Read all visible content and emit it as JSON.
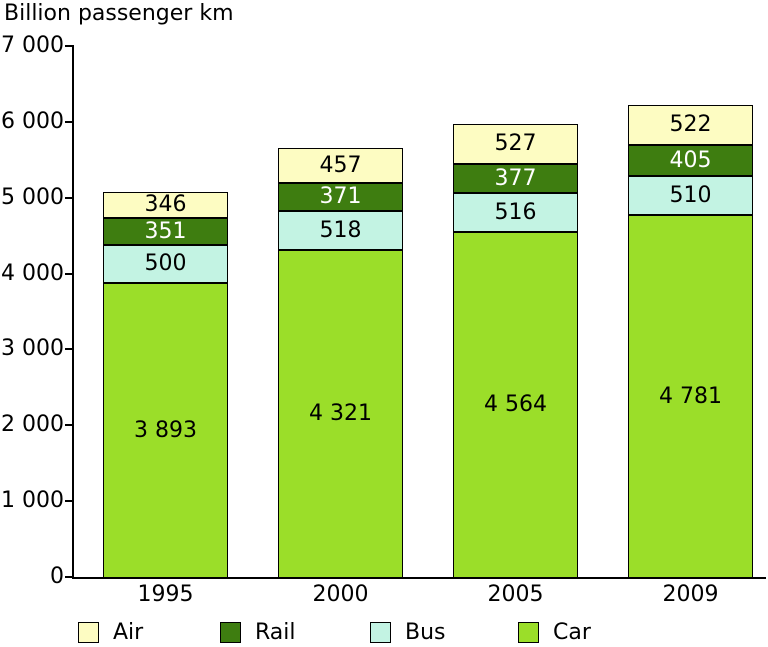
{
  "chart_data": {
    "type": "bar",
    "stacked": true,
    "title": "Billion passenger km",
    "ylabel": "Billion passenger km",
    "ylim": [
      0,
      7000
    ],
    "ytick_interval": 1000,
    "ytick_labels": [
      "0",
      "1 000",
      "2 000",
      "3 000",
      "4 000",
      "5 000",
      "6 000",
      "7 000"
    ],
    "categories": [
      "1995",
      "2000",
      "2005",
      "2009"
    ],
    "series": [
      {
        "name": "Car",
        "color": "#9BDE29",
        "label_color": "#000000",
        "values": [
          3893,
          4321,
          4564,
          4781
        ],
        "labels": [
          "3 893",
          "4 321",
          "4 564",
          "4 781"
        ]
      },
      {
        "name": "Bus",
        "color": "#C3F3E3",
        "label_color": "#000000",
        "values": [
          500,
          518,
          516,
          510
        ],
        "labels": [
          "500",
          "518",
          "516",
          "510"
        ]
      },
      {
        "name": "Rail",
        "color": "#3E7D10",
        "label_color": "#FFFFFF",
        "values": [
          351,
          371,
          377,
          405
        ],
        "labels": [
          "351",
          "371",
          "377",
          "405"
        ]
      },
      {
        "name": "Air",
        "color": "#FDFCC2",
        "label_color": "#000000",
        "values": [
          346,
          457,
          527,
          522
        ],
        "labels": [
          "346",
          "457",
          "527",
          "522"
        ]
      }
    ],
    "totals": [
      5090,
      5667,
      5984,
      6218
    ],
    "legend": {
      "position": "bottom",
      "entries": [
        "Air",
        "Rail",
        "Bus",
        "Car"
      ]
    },
    "grid": false,
    "axis_color": "#000000",
    "background": "#FFFFFF"
  }
}
